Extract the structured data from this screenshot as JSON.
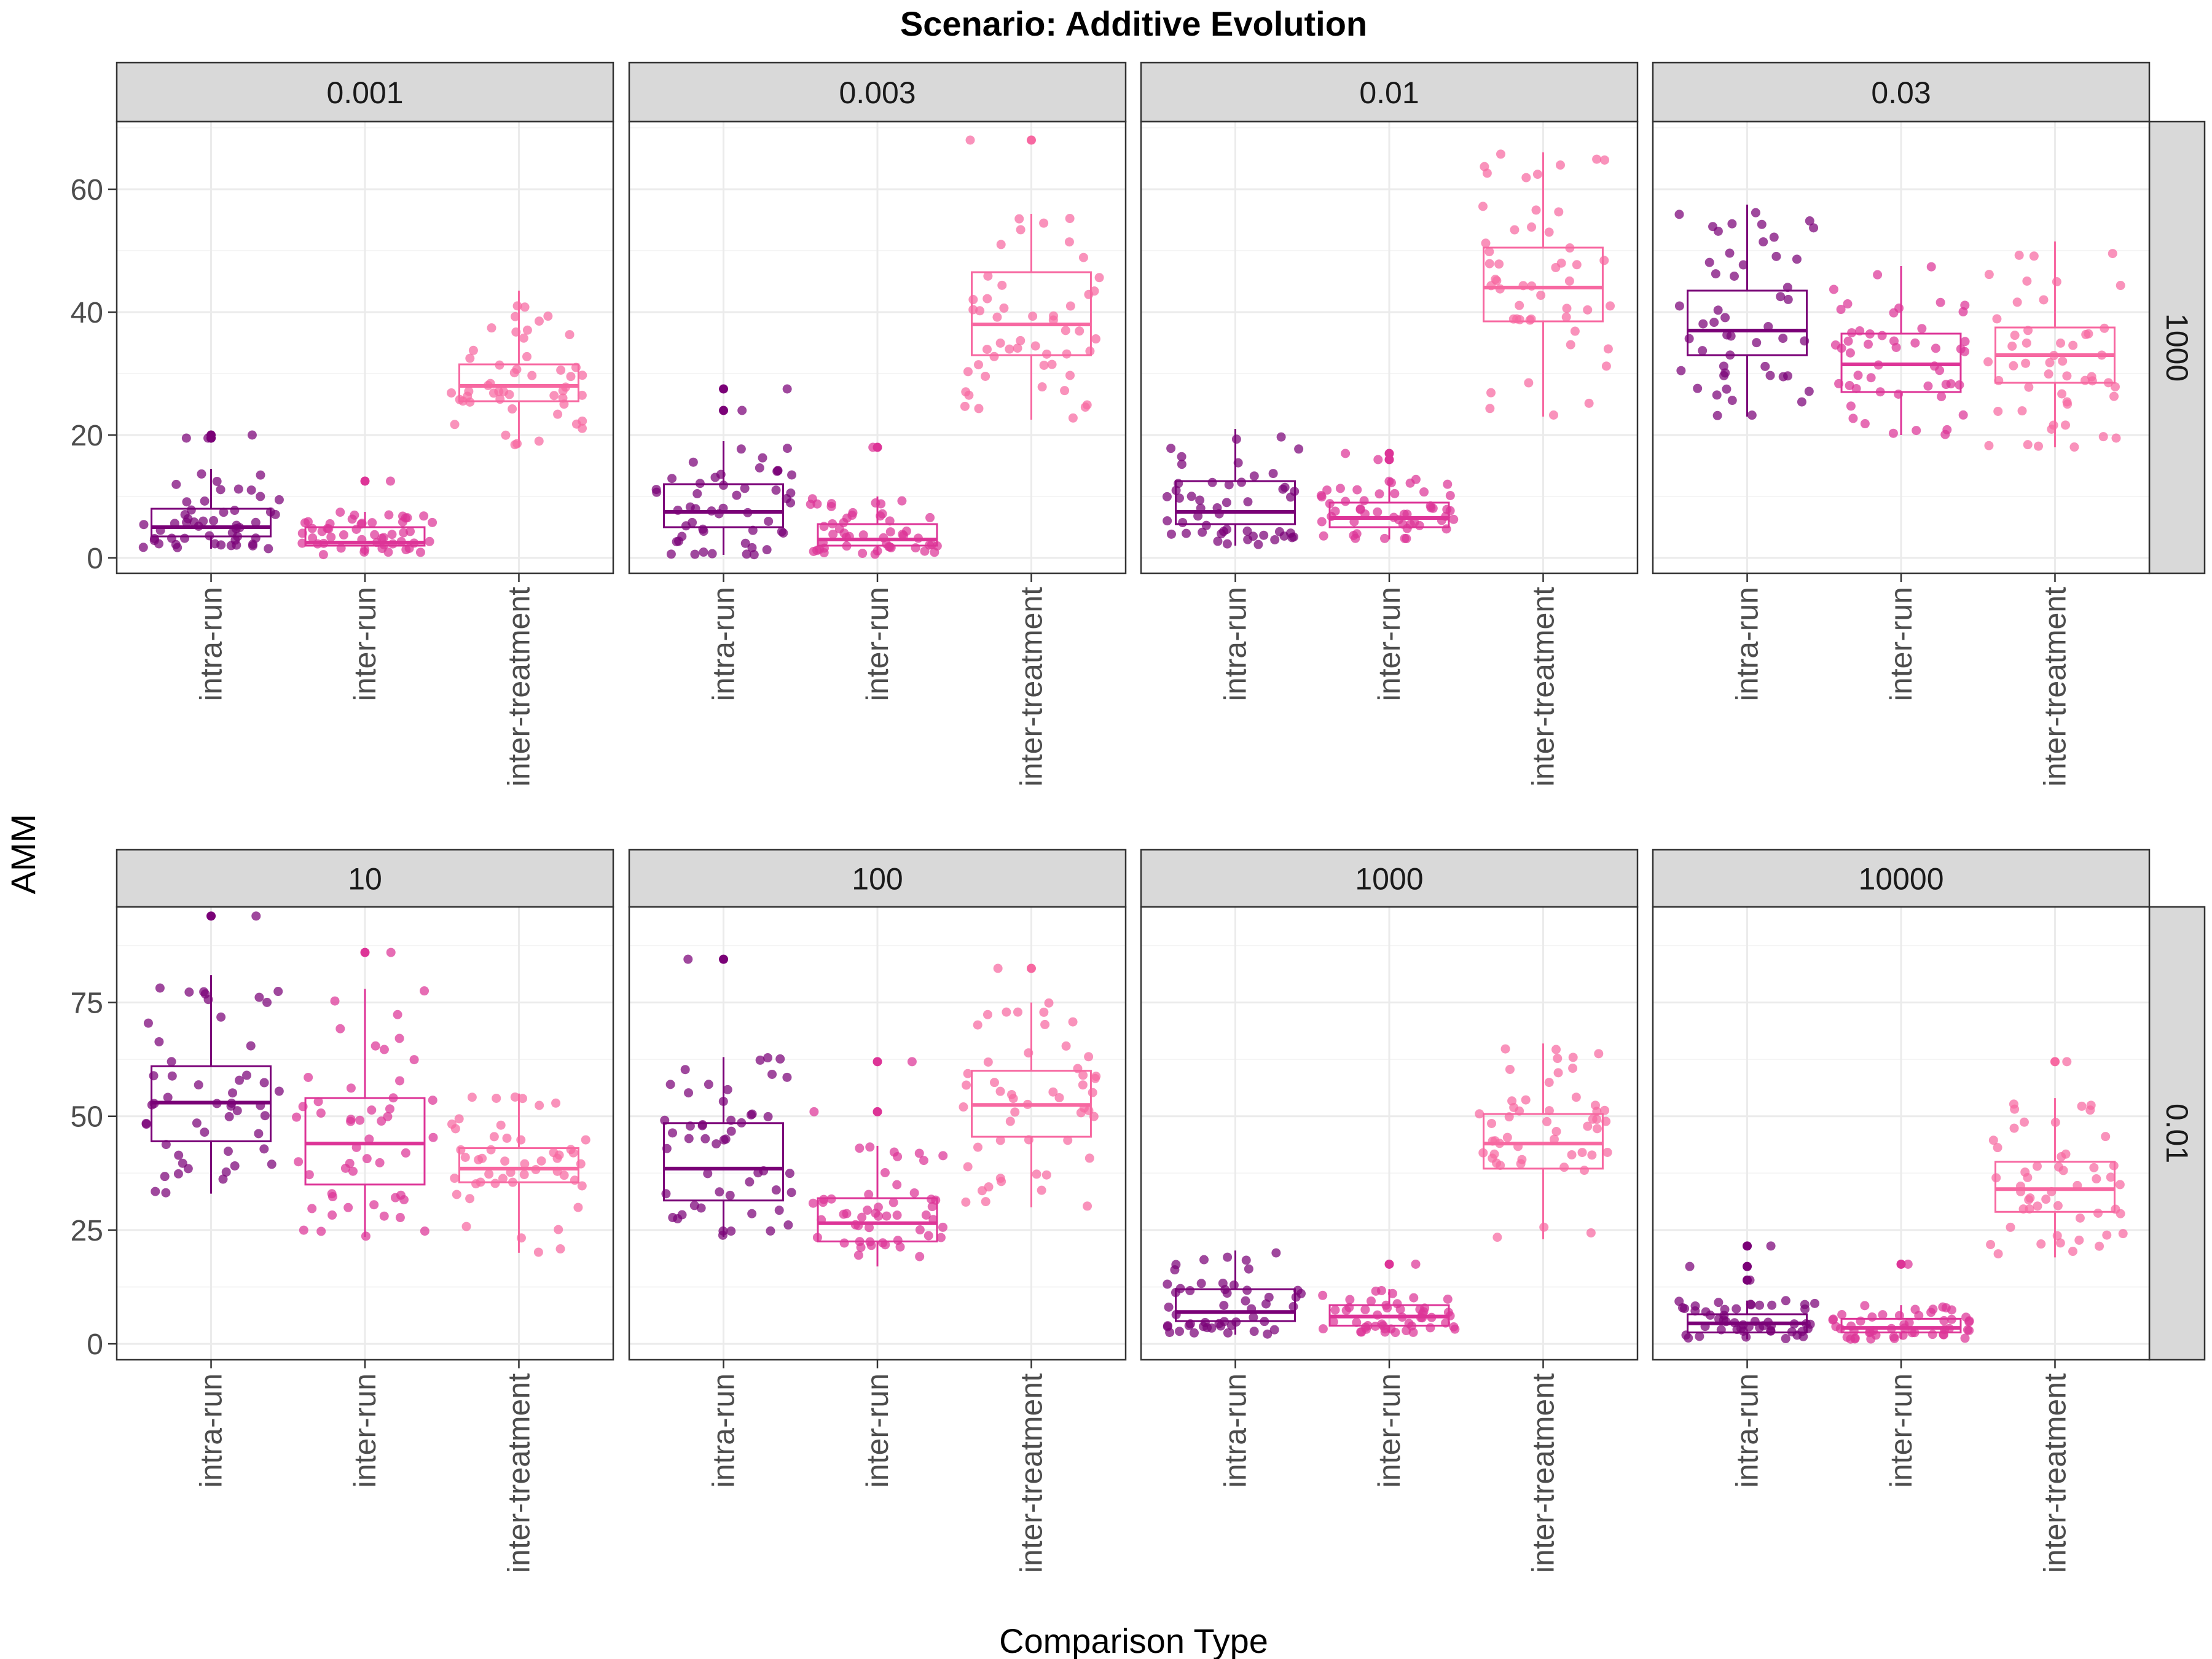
{
  "chart_data": {
    "type": "boxplot",
    "title": "Scenario: Additive Evolution",
    "xlabel": "Comparison Type",
    "ylabel": "AMM",
    "categories": [
      "intra-run",
      "inter-run",
      "inter-treatment"
    ],
    "colors": {
      "intra-run": "#7a0177",
      "inter-run": "#dd3497",
      "inter-treatment": "#f768a1",
      "strip_bg": "#d9d9d9",
      "grid_major": "#ebebeb",
      "grid_minor": "#f5f5f5",
      "panel_border": "#333333"
    },
    "rows": [
      {
        "row_label": "1000",
        "ylim": [
          -2.5,
          71
        ],
        "yticks": [
          0,
          20,
          40,
          60
        ],
        "panels": [
          {
            "label": "0.001",
            "boxes": [
              {
                "category": "intra-run",
                "q1": 3.5,
                "median": 5,
                "q3": 8,
                "min": 1.5,
                "max": 14.5,
                "points": [
                  20,
                  19.5,
                  19.5
                ]
              },
              {
                "category": "inter-run",
                "q1": 2,
                "median": 2.5,
                "q3": 5,
                "min": 0.5,
                "max": 7.5,
                "points": [
                  12.5
                ]
              },
              {
                "category": "inter-treatment",
                "q1": 25.5,
                "median": 28,
                "q3": 31.5,
                "min": 18,
                "max": 43.5,
                "points": []
              }
            ]
          },
          {
            "label": "0.003",
            "boxes": [
              {
                "category": "intra-run",
                "q1": 5,
                "median": 7.5,
                "q3": 12,
                "min": 0.5,
                "max": 19,
                "points": [
                  27.5,
                  24
                ]
              },
              {
                "category": "inter-run",
                "q1": 2,
                "median": 3,
                "q3": 5.5,
                "min": 0.5,
                "max": 10,
                "points": [
                  18
                ]
              },
              {
                "category": "inter-treatment",
                "q1": 33,
                "median": 38,
                "q3": 46.5,
                "min": 22.5,
                "max": 56,
                "points": [
                  68
                ]
              }
            ]
          },
          {
            "label": "0.01",
            "boxes": [
              {
                "category": "intra-run",
                "q1": 5.5,
                "median": 7.5,
                "q3": 12.5,
                "min": 2,
                "max": 21,
                "points": []
              },
              {
                "category": "inter-run",
                "q1": 5,
                "median": 6.5,
                "q3": 9,
                "min": 3,
                "max": 13,
                "points": [
                  17,
                  16
                ]
              },
              {
                "category": "inter-treatment",
                "q1": 38.5,
                "median": 44,
                "q3": 50.5,
                "min": 23,
                "max": 66,
                "points": []
              }
            ]
          },
          {
            "label": "0.03",
            "boxes": [
              {
                "category": "intra-run",
                "q1": 33,
                "median": 37,
                "q3": 43.5,
                "min": 23,
                "max": 57.5,
                "points": []
              },
              {
                "category": "inter-run",
                "q1": 27,
                "median": 31.5,
                "q3": 36.5,
                "min": 20,
                "max": 47.5,
                "points": []
              },
              {
                "category": "inter-treatment",
                "q1": 28.5,
                "median": 33,
                "q3": 37.5,
                "min": 18,
                "max": 51.5,
                "points": []
              }
            ]
          }
        ]
      },
      {
        "row_label": "0.01",
        "ylim": [
          -3.5,
          96
        ],
        "yticks": [
          0,
          25,
          50,
          75
        ],
        "panels": [
          {
            "label": "10",
            "boxes": [
              {
                "category": "intra-run",
                "q1": 44.5,
                "median": 53,
                "q3": 61,
                "min": 33,
                "max": 81,
                "points": [
                  94
                ]
              },
              {
                "category": "inter-run",
                "q1": 35,
                "median": 44,
                "q3": 54,
                "min": 23.5,
                "max": 78,
                "points": [
                  86
                ]
              },
              {
                "category": "inter-treatment",
                "q1": 35.5,
                "median": 38.5,
                "q3": 43,
                "min": 20,
                "max": 55,
                "points": []
              }
            ]
          },
          {
            "label": "100",
            "boxes": [
              {
                "category": "intra-run",
                "q1": 31.5,
                "median": 38.5,
                "q3": 48.5,
                "min": 23.5,
                "max": 63,
                "points": [
                  84.5
                ]
              },
              {
                "category": "inter-run",
                "q1": 22.5,
                "median": 26.5,
                "q3": 32,
                "min": 17,
                "max": 43.5,
                "points": [
                  62,
                  51
                ]
              },
              {
                "category": "inter-treatment",
                "q1": 45.5,
                "median": 52.5,
                "q3": 60,
                "min": 30,
                "max": 75,
                "points": [
                  82.5
                ]
              }
            ]
          },
          {
            "label": "1000",
            "boxes": [
              {
                "category": "intra-run",
                "q1": 5,
                "median": 7,
                "q3": 12,
                "min": 2,
                "max": 20.5,
                "points": []
              },
              {
                "category": "inter-run",
                "q1": 4,
                "median": 6,
                "q3": 8.5,
                "min": 2.5,
                "max": 12,
                "points": [
                  17.5
                ]
              },
              {
                "category": "inter-treatment",
                "q1": 38.5,
                "median": 44,
                "q3": 50.5,
                "min": 23,
                "max": 66,
                "points": []
              }
            ]
          },
          {
            "label": "10000",
            "boxes": [
              {
                "category": "intra-run",
                "q1": 2.5,
                "median": 4.5,
                "q3": 6.5,
                "min": 1,
                "max": 9.5,
                "points": [
                  21.5,
                  17,
                  14
                ]
              },
              {
                "category": "inter-run",
                "q1": 2.5,
                "median": 3.5,
                "q3": 5.5,
                "min": 1,
                "max": 8.5,
                "points": [
                  17.5
                ]
              },
              {
                "category": "inter-treatment",
                "q1": 29,
                "median": 34,
                "q3": 40,
                "min": 19,
                "max": 54,
                "points": [
                  62
                ]
              }
            ]
          }
        ]
      }
    ]
  }
}
